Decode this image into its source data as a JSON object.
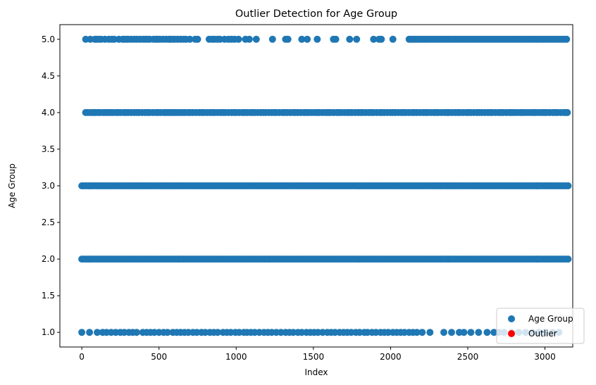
{
  "chart_data": {
    "type": "scatter",
    "title": "Outlier Detection for Age Group",
    "xlabel": "Index",
    "ylabel": "Age Group",
    "xlim": [
      -142,
      3180
    ],
    "ylim": [
      0.8,
      5.2
    ],
    "xticks": [
      0,
      500,
      1000,
      1500,
      2000,
      2500,
      3000
    ],
    "yticks": [
      1.0,
      1.5,
      2.0,
      2.5,
      3.0,
      3.5,
      4.0,
      4.5,
      5.0
    ],
    "ytick_labels": [
      "1.0",
      "1.5",
      "2.0",
      "2.5",
      "3.0",
      "3.5",
      "4.0",
      "4.5",
      "5.0"
    ],
    "grid": false,
    "legend_location": "lower right",
    "series": [
      {
        "name": "Age Group",
        "color": "#1f77b4",
        "segments": [
          {
            "y": 5.0,
            "x": [
              25,
              55,
              85,
              95,
              110,
              125,
              150,
              175,
              195,
              210,
              240,
              265,
              275,
              290,
              300,
              320,
              340,
              355,
              375,
              395,
              410,
              425,
              440,
              465,
              480,
              490,
              505,
              525,
              545,
              565,
              575,
              590,
              600,
              620,
              640,
              660,
              675,
              700,
              735,
              750,
              825,
              845,
              860,
              880,
              895,
              925,
              950,
              970,
              990,
              1015,
              1060,
              1085,
              1130,
              1235,
              1320,
              1335,
              1425,
              1460,
              1525,
              1630,
              1645,
              1735,
              1780,
              1890,
              1925,
              1940,
              2015,
              2120,
              2130,
              2145,
              2160,
              2170,
              2185,
              2200,
              2215,
              2225,
              2240,
              2255,
              2270,
              2285,
              2300,
              2315,
              2330,
              2345,
              2360,
              2375,
              2390,
              2405,
              2420,
              2435,
              2450,
              2465,
              2480,
              2495,
              2510,
              2525,
              2540,
              2555,
              2570,
              2585,
              2600,
              2615,
              2630,
              2645,
              2660,
              2675,
              2690,
              2705,
              2720,
              2735,
              2750,
              2765,
              2780,
              2795,
              2810,
              2825,
              2840,
              2855,
              2870,
              2885,
              2900,
              2915,
              2930,
              2945,
              2960,
              2975,
              2990,
              3005,
              3020,
              3035,
              3050,
              3065,
              3080,
              3095,
              3110,
              3125,
              3140
            ]
          },
          {
            "y": 4.0,
            "x": [
              25,
              40,
              60,
              75,
              90,
              105,
              120,
              140,
              155,
              170,
              185,
              200,
              220,
              235,
              250,
              270,
              285,
              300,
              320,
              340,
              355,
              370,
              390,
              410,
              425,
              440,
              460,
              480,
              495,
              510,
              530,
              545,
              560,
              575,
              590,
              605,
              620,
              640,
              655,
              670,
              690,
              705,
              720,
              740,
              760,
              775,
              790,
              810,
              830,
              845,
              860,
              880,
              900,
              915,
              930,
              950,
              970,
              985,
              1000,
              1020,
              1040,
              1055,
              1070,
              1090,
              1105,
              1120,
              1140,
              1160,
              1175,
              1190,
              1210,
              1230,
              1245,
              1260,
              1280,
              1300,
              1315,
              1330,
              1350,
              1370,
              1385,
              1400,
              1420,
              1440,
              1455,
              1470,
              1490,
              1510,
              1525,
              1540,
              1560,
              1580,
              1595,
              1610,
              1630,
              1650,
              1665,
              1680,
              1700,
              1720,
              1735,
              1750,
              1770,
              1790,
              1805,
              1820,
              1840,
              1860,
              1875,
              1890,
              1910,
              1930,
              1945,
              1960,
              1980,
              2000,
              2015,
              2030,
              2050,
              2070,
              2085,
              2100,
              2120,
              2140,
              2155,
              2170,
              2190,
              2210,
              2225,
              2240,
              2260,
              2280,
              2295,
              2310,
              2330,
              2350,
              2365,
              2380,
              2400,
              2420,
              2435,
              2450,
              2470,
              2490,
              2505,
              2520,
              2540,
              2560,
              2575,
              2590,
              2610,
              2630,
              2645,
              2660,
              2680,
              2700,
              2715,
              2730,
              2750,
              2770,
              2785,
              2800,
              2820,
              2840,
              2855,
              2870,
              2890,
              2910,
              2925,
              2940,
              2960,
              2980,
              2995,
              3010,
              3030,
              3050,
              3065,
              3080,
              3100,
              3120,
              3135,
              3145
            ]
          },
          {
            "y": 3.0,
            "range": [
              0,
              3150
            ],
            "count": 230
          },
          {
            "y": 2.0,
            "range": [
              0,
              3150
            ],
            "count": 230
          },
          {
            "y": 1.0,
            "x": [
              0,
              50,
              100,
              135,
              160,
              190,
              220,
              250,
              275,
              305,
              330,
              355,
              395,
              420,
              445,
              470,
              500,
              530,
              555,
              590,
              615,
              640,
              665,
              690,
              720,
              745,
              775,
              800,
              830,
              855,
              880,
              915,
              940,
              965,
              995,
              1020,
              1050,
              1070,
              1095,
              1120,
              1150,
              1180,
              1205,
              1230,
              1260,
              1290,
              1320,
              1345,
              1370,
              1400,
              1425,
              1455,
              1480,
              1505,
              1530,
              1560,
              1590,
              1615,
              1640,
              1670,
              1695,
              1720,
              1745,
              1775,
              1800,
              1830,
              1850,
              1880,
              1905,
              1935,
              1960,
              1985,
              2015,
              2040,
              2065,
              2090,
              2120,
              2145,
              2170,
              2205,
              2255,
              2345,
              2395,
              2445,
              2475,
              2520,
              2570,
              2625,
              2670,
              2700,
              2735,
              2785,
              2830,
              2875,
              2920,
              2960,
              3000,
              3050,
              3090
            ]
          }
        ]
      },
      {
        "name": "Outlier",
        "color": "#ff0000",
        "x": [],
        "y": []
      }
    ]
  }
}
